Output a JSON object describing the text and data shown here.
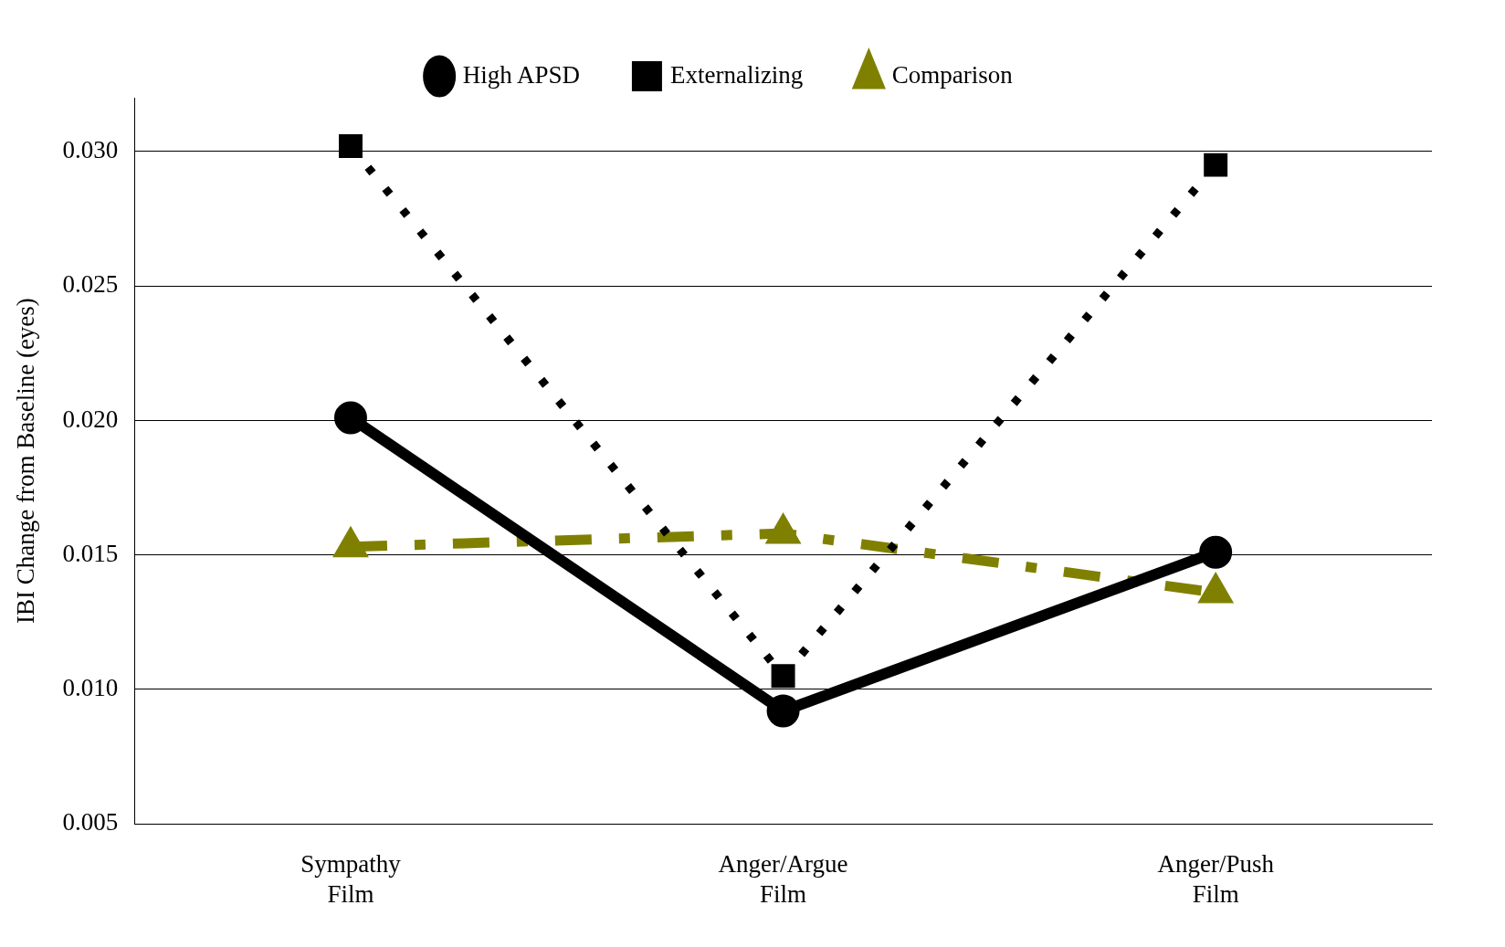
{
  "chart_data": {
    "type": "line",
    "ylabel": "IBI Change from Baseline (eyes)",
    "categories": [
      "Sympathy Film",
      "Anger/Argue Film",
      "Anger/Push Film"
    ],
    "series": [
      {
        "name": "High APSD",
        "color": "#000000",
        "values": [
          0.0201,
          0.0092,
          0.0151
        ],
        "marker": "circle",
        "line_style": "solid"
      },
      {
        "name": "Externalizing",
        "color": "#000000",
        "values": [
          0.0302,
          0.0105,
          0.0295
        ],
        "marker": "square",
        "line_style": "dotted"
      },
      {
        "name": "Comparison",
        "color": "#808000",
        "values": [
          0.0153,
          0.0158,
          0.0136
        ],
        "marker": "triangle",
        "line_style": "dashed"
      }
    ],
    "ylim": [
      0.005,
      0.032
    ],
    "yticks": [
      {
        "value": 0.005,
        "label": "0.005"
      },
      {
        "value": 0.01,
        "label": "0.010"
      },
      {
        "value": 0.015,
        "label": "0.015"
      },
      {
        "value": 0.02,
        "label": "0.020"
      },
      {
        "value": 0.025,
        "label": "0.025"
      },
      {
        "value": 0.03,
        "label": "0.030"
      }
    ],
    "grid": "y",
    "legend": "top"
  }
}
